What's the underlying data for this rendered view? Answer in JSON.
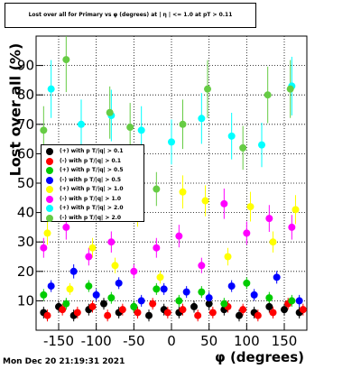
{
  "title": "Lost over all for Primary vs φ (degrees) at | η | <= 1.0 at pT > 0.11",
  "timestamp": "Mon Dec 20 21:19:31 2021",
  "chart_data": {
    "type": "scatter",
    "title": "Lost over all for Primary vs φ (degrees) at | η | <= 1.0 at pT > 0.11",
    "xlabel": "φ (degrees)",
    "ylabel": "Lost over all (%)",
    "xlim": [
      -180,
      180
    ],
    "ylim": [
      0,
      100
    ],
    "xticks": [
      -150,
      -100,
      -50,
      0,
      50,
      100,
      150
    ],
    "yticks": [
      10,
      20,
      30,
      40,
      50,
      60,
      70,
      80,
      90
    ],
    "grid": true,
    "legend_position": "center-left",
    "series": [
      {
        "name": "(+) with p T/|q| > 0.1",
        "color": "#000000",
        "x": [
          -170,
          -150,
          -130,
          -110,
          -90,
          -70,
          -50,
          -30,
          -10,
          10,
          30,
          50,
          70,
          90,
          110,
          130,
          150,
          170
        ],
        "y": [
          6,
          8,
          5,
          7,
          9,
          6,
          8,
          5,
          7,
          6,
          8,
          9,
          7,
          5,
          6,
          8,
          7,
          6
        ]
      },
      {
        "name": "(-) with p T/|q| > 0.1",
        "color": "#ff0000",
        "x": [
          -165,
          -145,
          -125,
          -105,
          -85,
          -65,
          -45,
          -25,
          -5,
          15,
          35,
          55,
          75,
          95,
          115,
          135,
          155,
          175
        ],
        "y": [
          5,
          7,
          6,
          8,
          5,
          7,
          6,
          9,
          6,
          7,
          5,
          6,
          8,
          7,
          5,
          6,
          9,
          7
        ]
      },
      {
        "name": "(+) with p T/|q| > 0.5",
        "color": "#00cc00",
        "x": [
          -170,
          -140,
          -110,
          -80,
          -50,
          -20,
          10,
          40,
          70,
          100,
          130,
          160
        ],
        "y": [
          12,
          9,
          15,
          11,
          8,
          14,
          10,
          13,
          9,
          16,
          11,
          10
        ]
      },
      {
        "name": "(-) with p T/|q| > 0.5",
        "color": "#0000ff",
        "x": [
          -160,
          -130,
          -100,
          -70,
          -40,
          -10,
          20,
          50,
          80,
          110,
          140,
          170
        ],
        "y": [
          15,
          20,
          12,
          16,
          10,
          14,
          13,
          11,
          15,
          12,
          18,
          10
        ]
      },
      {
        "name": "(+) with p T/|q| > 1.0",
        "color": "#ffff00",
        "x": [
          -165,
          -135,
          -105,
          -75,
          -45,
          -15,
          15,
          45,
          75,
          105,
          135,
          165
        ],
        "y": [
          33,
          14,
          28,
          22,
          40,
          18,
          47,
          44,
          25,
          42,
          30,
          41
        ]
      },
      {
        "name": "(-) with p T/|q| > 1.0",
        "color": "#ff00ff",
        "x": [
          -170,
          -140,
          -110,
          -80,
          -50,
          -20,
          10,
          40,
          70,
          100,
          130,
          160
        ],
        "y": [
          28,
          35,
          25,
          30,
          20,
          28,
          32,
          22,
          43,
          33,
          38,
          35
        ]
      },
      {
        "name": "(+) with p T/|q| > 2.0",
        "color": "#00ffff",
        "x": [
          -160,
          -120,
          -80,
          -40,
          0,
          40,
          80,
          120,
          160
        ],
        "y": [
          82,
          70,
          73,
          68,
          64,
          72,
          66,
          63,
          83
        ]
      },
      {
        "name": "(-) with p T/|q| > 2.0",
        "color": "#66cc44",
        "x": [
          -170,
          -140,
          -82,
          -55,
          -20,
          15,
          48,
          95,
          128,
          158
        ],
        "y": [
          68,
          92,
          74,
          69,
          48,
          70,
          82,
          62,
          80,
          82
        ]
      }
    ]
  }
}
